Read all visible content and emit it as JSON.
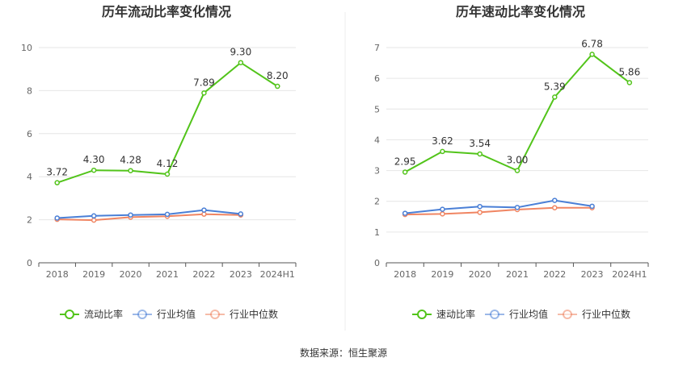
{
  "source_text": "数据来源：恒生聚源",
  "chart_data": [
    {
      "type": "line",
      "title": "历年流动比率变化情况",
      "categories": [
        "2018",
        "2019",
        "2020",
        "2021",
        "2022",
        "2023",
        "2024H1"
      ],
      "ylim": [
        0,
        10
      ],
      "yticks": [
        0,
        2,
        4,
        6,
        8,
        10
      ],
      "grid": true,
      "legend_position": "bottom",
      "series": [
        {
          "name": "流动比率",
          "color": "#52c41a",
          "values": [
            3.72,
            4.3,
            4.28,
            4.12,
            7.89,
            9.3,
            8.2
          ],
          "labels": [
            "3.72",
            "4.30",
            "4.28",
            "4.12",
            "7.89",
            "9.30",
            "8.20"
          ]
        },
        {
          "name": "行业均值",
          "color": "#4a7fd6",
          "values": [
            2.08,
            2.18,
            2.22,
            2.25,
            2.45,
            2.27,
            null
          ]
        },
        {
          "name": "行业中位数",
          "color": "#f08562",
          "values": [
            2.02,
            1.98,
            2.12,
            2.16,
            2.26,
            2.22,
            null
          ]
        }
      ]
    },
    {
      "type": "line",
      "title": "历年速动比率变化情况",
      "categories": [
        "2018",
        "2019",
        "2020",
        "2021",
        "2022",
        "2023",
        "2024H1"
      ],
      "ylim": [
        0,
        7
      ],
      "yticks": [
        0,
        1,
        2,
        3,
        4,
        5,
        6,
        7
      ],
      "grid": true,
      "legend_position": "bottom",
      "series": [
        {
          "name": "速动比率",
          "color": "#52c41a",
          "values": [
            2.95,
            3.62,
            3.54,
            3.0,
            5.39,
            6.78,
            5.86
          ],
          "labels": [
            "2.95",
            "3.62",
            "3.54",
            "3.00",
            "5.39",
            "6.78",
            "5.86"
          ]
        },
        {
          "name": "行业均值",
          "color": "#4a7fd6",
          "values": [
            1.61,
            1.74,
            1.83,
            1.8,
            2.03,
            1.84,
            null
          ]
        },
        {
          "name": "行业中位数",
          "color": "#f08562",
          "values": [
            1.57,
            1.59,
            1.64,
            1.73,
            1.79,
            1.79,
            null
          ]
        }
      ]
    }
  ]
}
